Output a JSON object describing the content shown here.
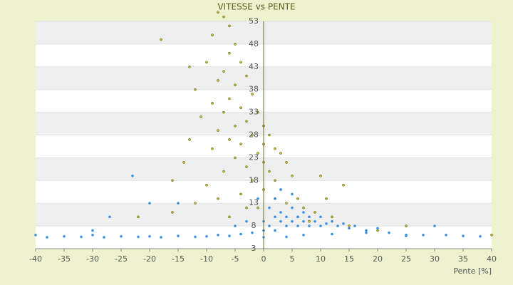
{
  "chart_data": {
    "type": "scatter",
    "title": "VITESSE vs PENTE",
    "x_label": "Pente [%]",
    "xlim": [
      -40,
      40
    ],
    "xticks": [
      -40,
      -35,
      -30,
      -25,
      -20,
      -15,
      -10,
      -5,
      0,
      5,
      10,
      15,
      20,
      25,
      30,
      35,
      40
    ],
    "ylim": [
      3,
      53
    ],
    "yticks": [
      3,
      8,
      13,
      18,
      23,
      28,
      33,
      38,
      43,
      48,
      53
    ],
    "grid": true,
    "series": [
      {
        "color": "#b8bb3c",
        "x": [
          -8,
          -7,
          -6,
          -9,
          -5,
          -6,
          -10,
          -4,
          -7,
          -3,
          -8,
          -5,
          -12,
          -2,
          -6,
          -9,
          -4,
          -1,
          -7,
          -11,
          -3,
          0,
          -5,
          -8,
          -2,
          1,
          -13,
          -6,
          -4,
          0,
          2,
          -9,
          -1,
          3,
          -5,
          -14,
          0,
          4,
          -3,
          1,
          -7,
          5,
          -2,
          2,
          -16,
          -10,
          3,
          0,
          -4,
          6,
          -18,
          -13,
          -22,
          7,
          -12,
          4,
          9,
          12,
          -1,
          8,
          15,
          20,
          25,
          -6,
          11,
          14,
          2,
          -3,
          6,
          40,
          -16,
          -8,
          10
        ],
        "values": [
          55,
          54,
          52,
          50,
          48,
          46,
          44,
          44,
          42,
          41,
          40,
          39,
          38,
          37,
          36,
          35,
          34,
          33,
          33,
          32,
          31,
          30,
          30,
          29,
          28,
          28,
          27,
          27,
          26,
          26,
          25,
          25,
          24,
          24,
          23,
          22,
          22,
          22,
          21,
          20,
          20,
          19,
          18,
          18,
          18,
          17,
          16,
          16,
          15,
          14,
          49,
          43,
          10,
          12,
          13,
          13,
          11,
          10,
          12,
          9,
          8,
          7,
          8,
          10,
          14,
          17,
          14,
          12,
          10,
          6,
          11,
          14,
          19
        ]
      },
      {
        "color": "#3f8fdc",
        "x": [
          -40,
          -38,
          -35,
          -32,
          -30,
          -28,
          -25,
          -22,
          -20,
          -18,
          -15,
          -12,
          -10,
          -8,
          -6,
          -4,
          -2,
          0,
          0,
          1,
          1,
          2,
          2,
          3,
          3,
          4,
          4,
          5,
          5,
          6,
          6,
          7,
          7,
          8,
          8,
          9,
          10,
          10,
          11,
          12,
          13,
          14,
          15,
          16,
          18,
          20,
          22,
          25,
          28,
          30,
          32,
          35,
          38,
          2,
          3,
          5,
          -1,
          -3,
          -5,
          -23,
          -27,
          -20,
          -30,
          -15,
          0,
          4,
          7,
          12,
          18,
          25
        ],
        "values": [
          6,
          5.5,
          5.7,
          5.6,
          6,
          5.5,
          5.7,
          5.6,
          5.7,
          5.5,
          5.8,
          5.6,
          5.7,
          6,
          5.8,
          6.2,
          6.5,
          7,
          9,
          12,
          8,
          10,
          7,
          9,
          11,
          8,
          10,
          9,
          12,
          8,
          10,
          9,
          11,
          8,
          10,
          9,
          8,
          10,
          8.5,
          9,
          8,
          8.5,
          7.5,
          8,
          7,
          7.5,
          6.5,
          6,
          6,
          8,
          6,
          5.8,
          5.7,
          14,
          16,
          15,
          14,
          9,
          8,
          19,
          10,
          13,
          7,
          13,
          5.5,
          5.6,
          6,
          6.2,
          6.5,
          5.8
        ]
      }
    ]
  }
}
